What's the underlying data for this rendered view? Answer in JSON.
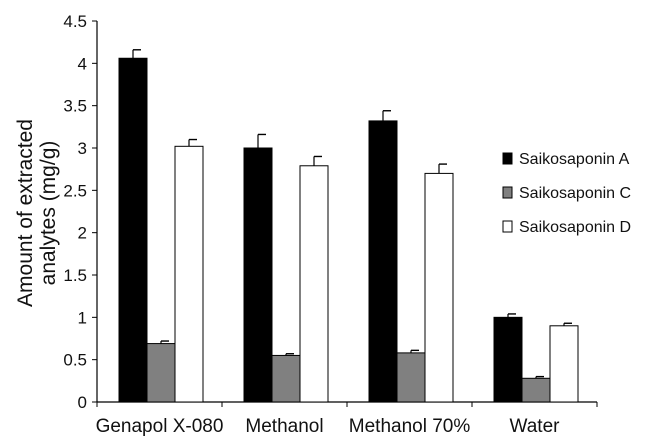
{
  "chart_data": {
    "type": "bar",
    "title": "",
    "xlabel": "",
    "ylabel_lines": [
      "Amount of extracted",
      "analytes (mg/g)"
    ],
    "ylim": [
      0,
      4.5
    ],
    "yticks": [
      "0",
      "0.5",
      "1",
      "1.5",
      "2",
      "2.5",
      "3",
      "3.5",
      "4",
      "4.5"
    ],
    "categories": [
      "Genapol X-080",
      "Methanol",
      "Methanol 70%",
      "Water"
    ],
    "series": [
      {
        "name": "Saikosaponin A",
        "color": "#000000",
        "values": [
          4.06,
          3.0,
          3.32,
          1.0
        ],
        "errors": [
          0.1,
          0.16,
          0.12,
          0.04
        ]
      },
      {
        "name": "Saikosaponin C",
        "color": "#808080",
        "values": [
          0.69,
          0.55,
          0.58,
          0.28
        ],
        "errors": [
          0.03,
          0.02,
          0.03,
          0.02
        ]
      },
      {
        "name": "Saikosaponin D",
        "color": "#ffffff",
        "values": [
          3.02,
          2.79,
          2.7,
          0.9
        ],
        "errors": [
          0.08,
          0.11,
          0.11,
          0.03
        ]
      }
    ],
    "legend_position": "right",
    "grid": false,
    "error_bars": true
  }
}
